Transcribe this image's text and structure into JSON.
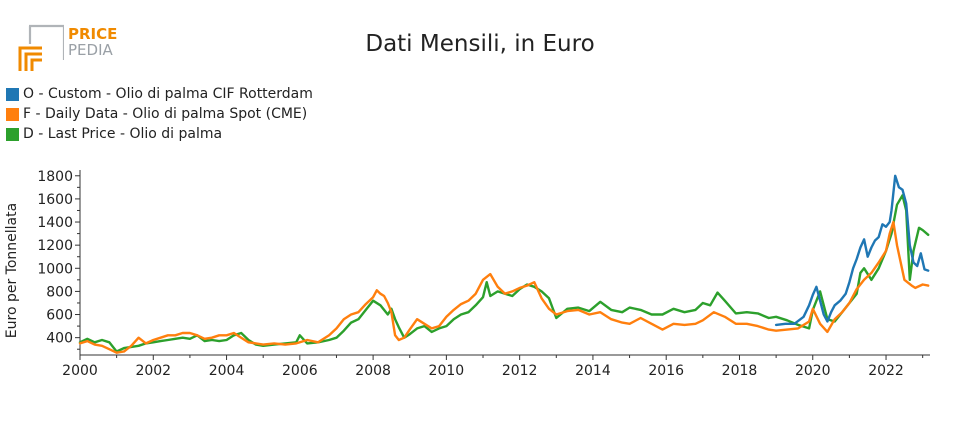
{
  "logo": {
    "line1": "PRICE",
    "line2": "PEDIA"
  },
  "chart_data": {
    "type": "line",
    "title": "Dati Mensili, in Euro",
    "xlabel": "",
    "ylabel": "Euro per Tonnellata",
    "xlim": [
      2000.0,
      2023.2
    ],
    "ylim": [
      250,
      1850
    ],
    "xticks": [
      2000,
      2002,
      2004,
      2006,
      2008,
      2010,
      2012,
      2014,
      2016,
      2018,
      2020,
      2022
    ],
    "yticks": [
      400,
      600,
      800,
      1000,
      1200,
      1400,
      1600,
      1800
    ],
    "legend_position": "top-left",
    "grid": false,
    "series": [
      {
        "name": "O - Custom - Olio di palma CIF Rotterdam",
        "color": "#1f77b4",
        "x": [
          2019.0,
          2019.25,
          2019.5,
          2019.75,
          2019.9,
          2020.0,
          2020.1,
          2020.2,
          2020.3,
          2020.4,
          2020.5,
          2020.6,
          2020.75,
          2020.9,
          2021.0,
          2021.1,
          2021.2,
          2021.3,
          2021.4,
          2021.5,
          2021.6,
          2021.7,
          2021.8,
          2021.9,
          2022.0,
          2022.1,
          2022.15,
          2022.25,
          2022.35,
          2022.45,
          2022.55,
          2022.65,
          2022.75,
          2022.85,
          2022.95,
          2023.05,
          2023.15
        ],
        "y": [
          510,
          520,
          520,
          580,
          680,
          770,
          840,
          720,
          600,
          540,
          620,
          680,
          720,
          780,
          880,
          1000,
          1080,
          1180,
          1250,
          1100,
          1180,
          1240,
          1270,
          1380,
          1360,
          1400,
          1500,
          1800,
          1700,
          1680,
          1560,
          1200,
          1050,
          1020,
          1130,
          990,
          980
        ]
      },
      {
        "name": "F - Daily Data - Olio di palma Spot (CME)",
        "color": "#ff7f0e",
        "x": [
          2000.0,
          2000.2,
          2000.4,
          2000.6,
          2000.8,
          2001.0,
          2001.2,
          2001.4,
          2001.6,
          2001.8,
          2002.0,
          2002.2,
          2002.4,
          2002.6,
          2002.8,
          2003.0,
          2003.2,
          2003.4,
          2003.6,
          2003.8,
          2004.0,
          2004.2,
          2004.4,
          2004.6,
          2004.8,
          2005.0,
          2005.3,
          2005.6,
          2005.9,
          2006.2,
          2006.5,
          2006.8,
          2007.0,
          2007.2,
          2007.4,
          2007.6,
          2007.8,
          2008.0,
          2008.1,
          2008.2,
          2008.3,
          2008.4,
          2008.5,
          2008.6,
          2008.7,
          2008.85,
          2009.0,
          2009.2,
          2009.4,
          2009.6,
          2009.8,
          2010.0,
          2010.2,
          2010.4,
          2010.6,
          2010.8,
          2011.0,
          2011.2,
          2011.4,
          2011.6,
          2011.8,
          2012.0,
          2012.2,
          2012.4,
          2012.6,
          2012.8,
          2013.0,
          2013.3,
          2013.6,
          2013.9,
          2014.2,
          2014.5,
          2014.8,
          2015.0,
          2015.3,
          2015.6,
          2015.9,
          2016.2,
          2016.5,
          2016.8,
          2017.0,
          2017.3,
          2017.6,
          2017.9,
          2018.2,
          2018.5,
          2018.8,
          2019.0,
          2019.3,
          2019.6,
          2019.9,
          2020.0,
          2020.2,
          2020.4,
          2020.6,
          2020.8,
          2021.0,
          2021.2,
          2021.4,
          2021.6,
          2021.8,
          2022.0,
          2022.1,
          2022.2,
          2022.3,
          2022.5,
          2022.7,
          2022.8,
          2023.0,
          2023.15
        ],
        "y": [
          350,
          370,
          340,
          330,
          300,
          270,
          280,
          330,
          400,
          350,
          380,
          400,
          420,
          420,
          440,
          440,
          420,
          390,
          400,
          420,
          420,
          440,
          400,
          360,
          350,
          340,
          350,
          340,
          350,
          380,
          360,
          420,
          480,
          560,
          600,
          620,
          690,
          750,
          810,
          780,
          760,
          700,
          620,
          420,
          380,
          400,
          470,
          560,
          520,
          480,
          500,
          580,
          640,
          690,
          720,
          780,
          900,
          950,
          840,
          780,
          800,
          830,
          850,
          880,
          740,
          650,
          600,
          630,
          640,
          600,
          620,
          560,
          530,
          520,
          570,
          520,
          470,
          520,
          510,
          520,
          550,
          620,
          580,
          520,
          520,
          500,
          470,
          460,
          470,
          480,
          540,
          650,
          520,
          450,
          560,
          620,
          700,
          820,
          900,
          960,
          1050,
          1150,
          1300,
          1400,
          1200,
          900,
          850,
          830,
          860,
          850
        ]
      },
      {
        "name": "D - Last Price - Olio di palma",
        "color": "#2ca02c",
        "x": [
          2000.0,
          2000.2,
          2000.4,
          2000.6,
          2000.8,
          2001.0,
          2001.2,
          2001.4,
          2001.6,
          2001.8,
          2002.0,
          2002.2,
          2002.4,
          2002.6,
          2002.8,
          2003.0,
          2003.2,
          2003.4,
          2003.6,
          2003.8,
          2004.0,
          2004.2,
          2004.4,
          2004.6,
          2004.8,
          2005.0,
          2005.3,
          2005.6,
          2005.9,
          2006.0,
          2006.2,
          2006.5,
          2006.8,
          2007.0,
          2007.2,
          2007.4,
          2007.6,
          2007.8,
          2008.0,
          2008.2,
          2008.4,
          2008.5,
          2008.6,
          2008.7,
          2008.85,
          2009.0,
          2009.2,
          2009.4,
          2009.6,
          2009.8,
          2010.0,
          2010.2,
          2010.4,
          2010.6,
          2010.8,
          2011.0,
          2011.1,
          2011.2,
          2011.4,
          2011.6,
          2011.8,
          2012.0,
          2012.2,
          2012.4,
          2012.6,
          2012.8,
          2013.0,
          2013.3,
          2013.6,
          2013.9,
          2014.2,
          2014.5,
          2014.8,
          2015.0,
          2015.3,
          2015.6,
          2015.9,
          2016.2,
          2016.5,
          2016.8,
          2017.0,
          2017.2,
          2017.4,
          2017.6,
          2017.9,
          2018.2,
          2018.5,
          2018.8,
          2019.0,
          2019.3,
          2019.6,
          2019.9,
          2020.0,
          2020.2,
          2020.4,
          2020.6,
          2020.8,
          2021.0,
          2021.2,
          2021.3,
          2021.4,
          2021.6,
          2021.8,
          2022.0,
          2022.15,
          2022.3,
          2022.45,
          2022.55,
          2022.65,
          2022.75,
          2022.9,
          2023.0,
          2023.15
        ],
        "y": [
          360,
          390,
          360,
          380,
          360,
          280,
          310,
          320,
          330,
          350,
          360,
          370,
          380,
          390,
          400,
          390,
          420,
          370,
          380,
          370,
          380,
          420,
          440,
          380,
          340,
          330,
          340,
          350,
          360,
          420,
          350,
          360,
          380,
          400,
          460,
          530,
          560,
          640,
          720,
          680,
          600,
          650,
          560,
          490,
          400,
          430,
          480,
          500,
          450,
          480,
          500,
          560,
          600,
          620,
          680,
          750,
          880,
          760,
          800,
          780,
          760,
          820,
          860,
          840,
          800,
          740,
          570,
          650,
          660,
          630,
          710,
          640,
          620,
          660,
          640,
          600,
          600,
          650,
          620,
          640,
          700,
          680,
          790,
          720,
          610,
          620,
          610,
          570,
          580,
          550,
          510,
          480,
          640,
          800,
          560,
          540,
          620,
          700,
          780,
          960,
          1000,
          900,
          1000,
          1150,
          1300,
          1550,
          1630,
          1500,
          900,
          1150,
          1350,
          1330,
          1290
        ]
      }
    ]
  }
}
